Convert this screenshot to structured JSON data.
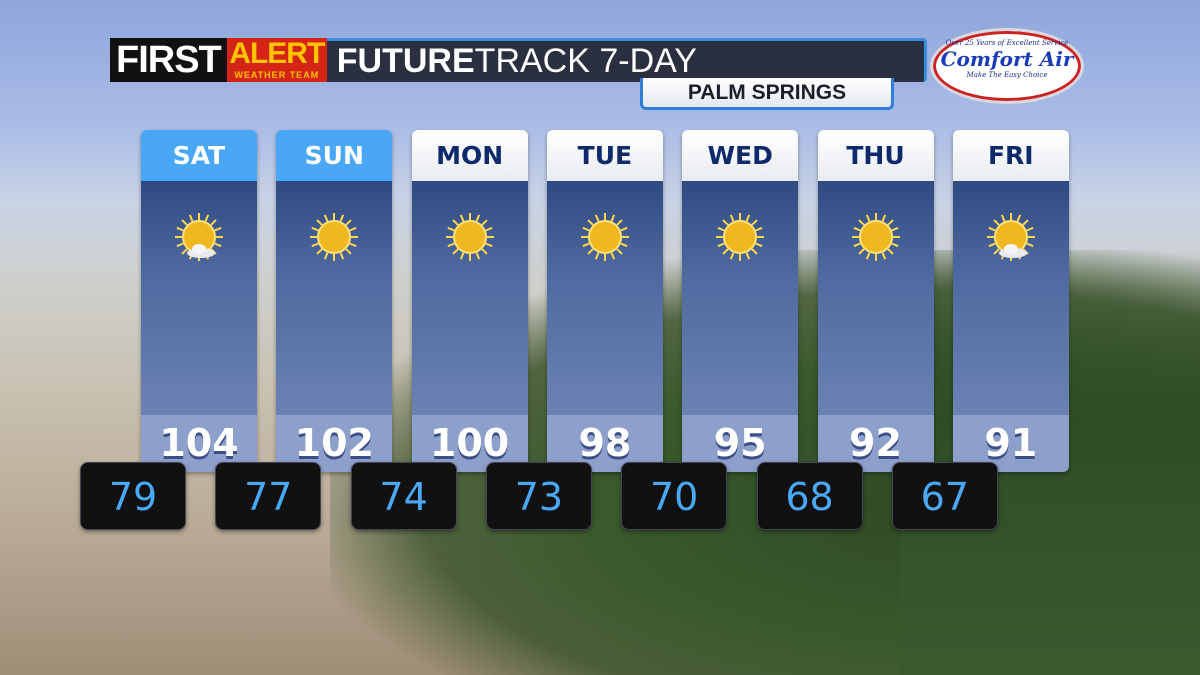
{
  "header": {
    "first": "FIRST",
    "alert": "ALERT",
    "team": "WEATHER TEAM",
    "title_bold": "FUTURE",
    "title_rest": "TRACK 7-DAY",
    "location": "PALM SPRINGS"
  },
  "sponsor": {
    "tagline": "Over 25 Years of Excellent Service",
    "name": "Comfort Air",
    "slogan": "Make The Easy Choice"
  },
  "colors": {
    "highlight_day": "#49a7f5",
    "low_text": "#4aa8f4",
    "alert_red": "#d42416"
  },
  "days": [
    {
      "day": "SAT",
      "high": "104",
      "low": "79",
      "icon": "sun-with-cloud-icon",
      "highlighted": true
    },
    {
      "day": "SUN",
      "high": "102",
      "low": "77",
      "icon": "sun-icon",
      "highlighted": true
    },
    {
      "day": "MON",
      "high": "100",
      "low": "74",
      "icon": "sun-icon",
      "highlighted": false
    },
    {
      "day": "TUE",
      "high": "98",
      "low": "73",
      "icon": "sun-icon",
      "highlighted": false
    },
    {
      "day": "WED",
      "high": "95",
      "low": "70",
      "icon": "sun-icon",
      "highlighted": false
    },
    {
      "day": "THU",
      "high": "92",
      "low": "68",
      "icon": "sun-icon",
      "highlighted": false
    },
    {
      "day": "FRI",
      "high": "91",
      "low": "67",
      "icon": "sun-with-cloud-icon",
      "highlighted": false
    }
  ]
}
